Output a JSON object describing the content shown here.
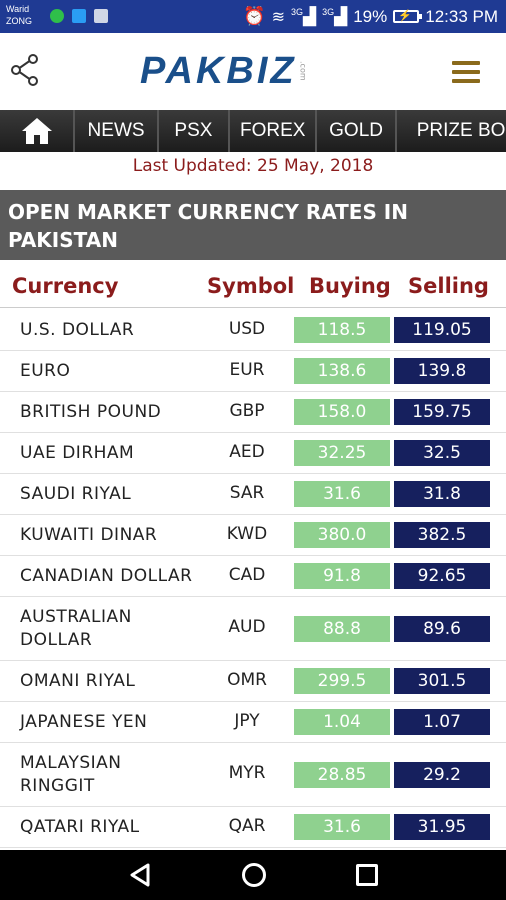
{
  "status_bar": {
    "carrier_line1": "Warid",
    "carrier_line2": "ZONG",
    "net1": "3G",
    "net2": "3G",
    "battery": "19%",
    "time": "12:33 PM"
  },
  "header": {
    "logo_text": "PAKBIZ",
    "logo_suffix": ".com"
  },
  "nav": {
    "items": [
      "NEWS",
      "PSX",
      "FOREX",
      "GOLD",
      "PRIZE BO"
    ]
  },
  "last_updated": "Last Updated: 25 May, 2018",
  "section_title": "OPEN MARKET CURRENCY RATES IN PAKISTAN",
  "table": {
    "headers": [
      "Currency",
      "Symbol",
      "Buying",
      "Selling"
    ],
    "rows": [
      {
        "currency": "U.S. DOLLAR",
        "symbol": "USD",
        "buying": "118.5",
        "selling": "119.05"
      },
      {
        "currency": "EURO",
        "symbol": "EUR",
        "buying": "138.6",
        "selling": "139.8"
      },
      {
        "currency": "BRITISH POUND",
        "symbol": "GBP",
        "buying": "158.0",
        "selling": "159.75"
      },
      {
        "currency": "UAE DIRHAM",
        "symbol": "AED",
        "buying": "32.25",
        "selling": "32.5"
      },
      {
        "currency": "SAUDI RIYAL",
        "symbol": "SAR",
        "buying": "31.6",
        "selling": "31.8"
      },
      {
        "currency": "KUWAITI DINAR",
        "symbol": "KWD",
        "buying": "380.0",
        "selling": "382.5"
      },
      {
        "currency": "CANADIAN DOLLAR",
        "symbol": "CAD",
        "buying": "91.8",
        "selling": "92.65"
      },
      {
        "currency": "AUSTRALIAN DOLLAR",
        "symbol": "AUD",
        "buying": "88.8",
        "selling": "89.6"
      },
      {
        "currency": "OMANI RIYAL",
        "symbol": "OMR",
        "buying": "299.5",
        "selling": "301.5"
      },
      {
        "currency": "JAPANESE YEN",
        "symbol": "JPY",
        "buying": "1.04",
        "selling": "1.07"
      },
      {
        "currency": "MALAYSIAN RINGGIT",
        "symbol": "MYR",
        "buying": "28.85",
        "selling": "29.2"
      },
      {
        "currency": "QATARI RIYAL",
        "symbol": "QAR",
        "buying": "31.6",
        "selling": "31.95"
      }
    ]
  },
  "colors": {
    "status_bar": "#1f3a93",
    "buying_bg": "#8fd18f",
    "selling_bg": "#16205e",
    "header_text": "#8b1c1c",
    "section_bg": "#5a5a5a"
  }
}
